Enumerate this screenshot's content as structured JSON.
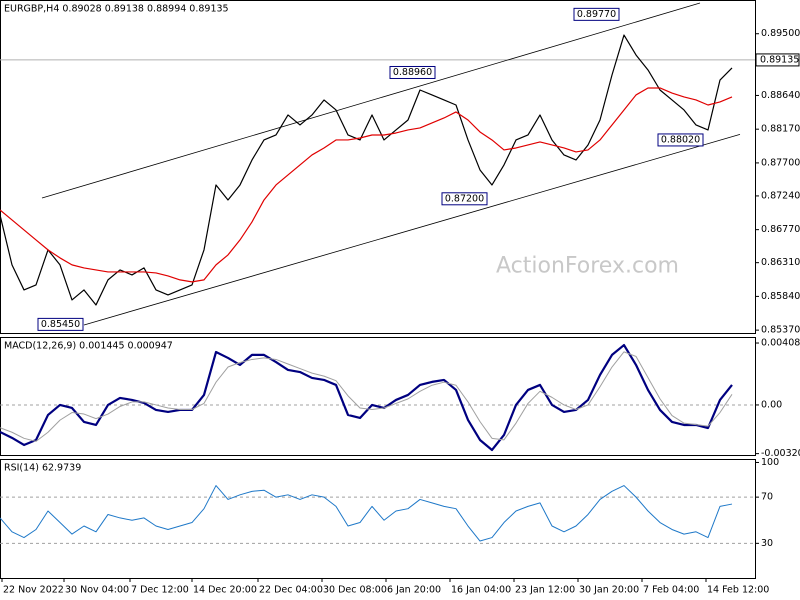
{
  "chart_data": [
    {
      "type": "line",
      "title": "EURGBP,H4  0.89028 0.89138 0.88994 0.89135",
      "watermark": "ActionForex.com",
      "x": [
        0,
        6,
        12,
        18,
        24,
        30,
        36,
        42,
        48,
        54,
        60,
        66,
        72,
        78,
        84,
        90,
        96,
        102,
        108,
        114,
        120,
        126,
        132,
        138,
        144,
        150,
        156,
        162,
        168,
        174,
        180,
        186,
        192,
        198,
        204,
        210,
        216,
        222,
        228,
        234,
        240,
        246,
        252,
        258,
        264,
        270,
        276,
        282,
        288,
        294,
        300,
        306,
        312,
        318,
        324,
        330,
        336,
        342,
        348,
        354,
        360,
        366
      ],
      "xlim": [
        0,
        377.5
      ],
      "ylim": [
        0.8533,
        0.8997
      ],
      "yticks": [
        {
          "value": 0.895,
          "label": "0.89500"
        },
        {
          "value": 0.8864,
          "label": "0.88640"
        },
        {
          "value": 0.8817,
          "label": "0.88170"
        },
        {
          "value": 0.877,
          "label": "0.87700"
        },
        {
          "value": 0.8724,
          "label": "0.87240"
        },
        {
          "value": 0.8677,
          "label": "0.86770"
        },
        {
          "value": 0.8631,
          "label": "0.86310"
        },
        {
          "value": 0.8584,
          "label": "0.85840"
        },
        {
          "value": 0.8537,
          "label": "0.85370"
        }
      ],
      "last_price": {
        "value": 0.89135,
        "label": "0.89135"
      },
      "series": [
        {
          "color": "#000000",
          "values": [
            0.86975,
            0.86279,
            0.8593,
            0.86,
            0.86488,
            0.86279,
            0.85791,
            0.8593,
            0.85721,
            0.8607,
            0.86209,
            0.86139,
            0.86237,
            0.8593,
            0.85861,
            0.8593,
            0.86,
            0.86488,
            0.87393,
            0.87184,
            0.87393,
            0.87741,
            0.8802,
            0.88089,
            0.88368,
            0.88229,
            0.88368,
            0.88577,
            0.88438,
            0.88089,
            0.8802,
            0.88368,
            0.8802,
            0.88159,
            0.88298,
            0.88716,
            0.88647,
            0.88577,
            0.88507,
            0.8802,
            0.87602,
            0.87393,
            0.87672,
            0.8802,
            0.88089,
            0.88368,
            0.8802,
            0.87811,
            0.87741,
            0.8795,
            0.88298,
            0.88925,
            0.89482,
            0.89204,
            0.88995,
            0.88716,
            0.88577,
            0.88438,
            0.88229,
            0.88159,
            0.88855,
            0.89023
          ]
        },
        {
          "color": "#e00000",
          "values": [
            0.87045,
            0.86905,
            0.86766,
            0.86627,
            0.86488,
            0.86376,
            0.86279,
            0.86237,
            0.86209,
            0.86181,
            0.86181,
            0.86181,
            0.86181,
            0.86167,
            0.86125,
            0.8607,
            0.86042,
            0.8607,
            0.86279,
            0.86418,
            0.86627,
            0.86878,
            0.87184,
            0.87393,
            0.87532,
            0.87672,
            0.87811,
            0.87908,
            0.8802,
            0.8802,
            0.88047,
            0.88089,
            0.88089,
            0.88117,
            0.88159,
            0.88187,
            0.88257,
            0.88326,
            0.8841,
            0.88298,
            0.88131,
            0.8802,
            0.87881,
            0.87908,
            0.8795,
            0.87992,
            0.8795,
            0.87908,
            0.87853,
            0.87881,
            0.8802,
            0.88229,
            0.88438,
            0.88647,
            0.88744,
            0.88744,
            0.88674,
            0.88619,
            0.88577,
            0.88507,
            0.88549,
            0.88619
          ]
        }
      ],
      "channel": [
        {
          "x": [
            21,
            350
          ],
          "values": [
            0.87211,
            0.89928
          ]
        },
        {
          "x": [
            42,
            370
          ],
          "values": [
            0.85442,
            0.88098
          ]
        }
      ],
      "annotations": [
        {
          "x": 42,
          "value": 0.8545,
          "label": "0.85450"
        },
        {
          "x": 218,
          "value": 0.8896,
          "label": "0.88960"
        },
        {
          "x": 244,
          "value": 0.872,
          "label": "0.87200"
        },
        {
          "x": 310,
          "value": 0.8977,
          "label": "0.89770"
        },
        {
          "x": 352,
          "value": 0.8802,
          "label": "0.88020"
        }
      ]
    },
    {
      "type": "line",
      "title": "MACD(12,26,9) 0.001445 0.000947",
      "x": [
        0,
        6,
        12,
        18,
        24,
        30,
        36,
        42,
        48,
        54,
        60,
        66,
        72,
        78,
        84,
        90,
        96,
        102,
        108,
        114,
        120,
        126,
        132,
        138,
        144,
        150,
        156,
        162,
        168,
        174,
        180,
        186,
        192,
        198,
        204,
        210,
        216,
        222,
        228,
        234,
        240,
        246,
        252,
        258,
        264,
        270,
        276,
        282,
        288,
        294,
        300,
        306,
        312,
        318,
        324,
        330,
        336,
        342,
        348,
        354,
        360,
        366
      ],
      "xlim": [
        0,
        377.5
      ],
      "ylim": [
        -0.0033,
        0.00448
      ],
      "yticks": [
        0.004083,
        {
          "value": 0,
          "label": "0.00"
        },
        -0.003209
      ],
      "levels": [
        0
      ],
      "series": [
        {
          "color": "#000080",
          "width": 2.2,
          "values": [
            -0.00178,
            -0.00217,
            -0.00264,
            -0.00231,
            -0.00066,
            0,
            -0.0002,
            -0.00112,
            -0.00132,
            0,
            0.00046,
            0.00033,
            0.00013,
            -0.00033,
            -0.00046,
            -0.00033,
            -0.00033,
            0.00066,
            0.00349,
            0.0031,
            0.00264,
            0.0033,
            0.0033,
            0.00283,
            0.00231,
            0.00217,
            0.00178,
            0.00165,
            0.00132,
            -0.00066,
            -0.00086,
            0,
            -0.0002,
            0.00033,
            0.00066,
            0.00132,
            0.00152,
            0.00165,
            0.00099,
            -0.00099,
            -0.00231,
            -0.00297,
            -0.00198,
            0,
            0.00099,
            0.00132,
            0,
            -0.00046,
            -0.00033,
            0.00033,
            0.00198,
            0.0033,
            0.00395,
            0.00264,
            0.00099,
            -0.00033,
            -0.00112,
            -0.00132,
            -0.00132,
            -0.00152,
            0.00033,
            0.00132
          ]
        },
        {
          "color": "#a0a0a0",
          "width": 1,
          "values": [
            -0.0015,
            -0.0018,
            -0.0022,
            -0.0024,
            -0.0018,
            -0.001,
            -0.0005,
            -0.0006,
            -0.0009,
            -0.0006,
            -0.0001,
            0.0002,
            0.0002,
            0,
            -0.0002,
            -0.0003,
            -0.0003,
            0.0001,
            0.0015,
            0.0025,
            0.0028,
            0.003,
            0.0031,
            0.003,
            0.0027,
            0.0024,
            0.0021,
            0.0019,
            0.0016,
            0.0006,
            -0.0002,
            -0.0003,
            -0.0002,
            0.0001,
            0.0004,
            0.0009,
            0.0013,
            0.0015,
            0.0013,
            0.0002,
            -0.0011,
            -0.0022,
            -0.0023,
            -0.0012,
            0.0001,
            0.0009,
            0.0005,
            0,
            -0.0003,
            0,
            0.0012,
            0.0025,
            0.0035,
            0.0032,
            0.0018,
            0.0004,
            -0.0007,
            -0.0012,
            -0.0013,
            -0.0014,
            -0.0005,
            0.0007
          ]
        }
      ]
    },
    {
      "type": "line",
      "title": "RSI(14) 62.9739",
      "x": [
        0,
        6,
        12,
        18,
        24,
        30,
        36,
        42,
        48,
        54,
        60,
        66,
        72,
        78,
        84,
        90,
        96,
        102,
        108,
        114,
        120,
        126,
        132,
        138,
        144,
        150,
        156,
        162,
        168,
        174,
        180,
        186,
        192,
        198,
        204,
        210,
        216,
        222,
        228,
        234,
        240,
        246,
        252,
        258,
        264,
        270,
        276,
        282,
        288,
        294,
        300,
        306,
        312,
        318,
        324,
        330,
        336,
        342,
        348,
        354,
        360,
        366
      ],
      "xlim": [
        0,
        377.5
      ],
      "ylim": [
        0,
        103
      ],
      "yticks": [
        100,
        70,
        30
      ],
      "levels": [
        70,
        30
      ],
      "xticks": [
        {
          "value": 1,
          "label": "22 Nov 2022"
        },
        {
          "value": 32,
          "label": "30 Nov 04:00"
        },
        {
          "value": 65,
          "label": "7 Dec 12:00"
        },
        {
          "value": 96,
          "label": "14 Dec 20:00"
        },
        {
          "value": 129,
          "label": "22 Dec 04:00"
        },
        {
          "value": 161,
          "label": "30 Dec 08:00"
        },
        {
          "value": 193,
          "label": "6 Jan 20:00"
        },
        {
          "value": 225,
          "label": "16 Jan 04:00"
        },
        {
          "value": 257,
          "label": "23 Jan 12:00"
        },
        {
          "value": 289,
          "label": "30 Jan 20:00"
        },
        {
          "value": 321,
          "label": "7 Feb 04:00"
        },
        {
          "value": 353,
          "label": "14 Feb 12:00"
        }
      ],
      "series": [
        {
          "color": "#1e78c8",
          "width": 1,
          "values": [
            52,
            40,
            35,
            42,
            58,
            48,
            38,
            45,
            40,
            55,
            52,
            50,
            52,
            45,
            42,
            45,
            48,
            60,
            80,
            68,
            72,
            75,
            76,
            70,
            72,
            68,
            72,
            70,
            62,
            45,
            48,
            62,
            50,
            58,
            60,
            68,
            65,
            62,
            60,
            45,
            32,
            35,
            48,
            58,
            62,
            65,
            45,
            40,
            45,
            55,
            68,
            75,
            80,
            70,
            58,
            48,
            42,
            38,
            40,
            35,
            62,
            64
          ]
        }
      ]
    }
  ]
}
